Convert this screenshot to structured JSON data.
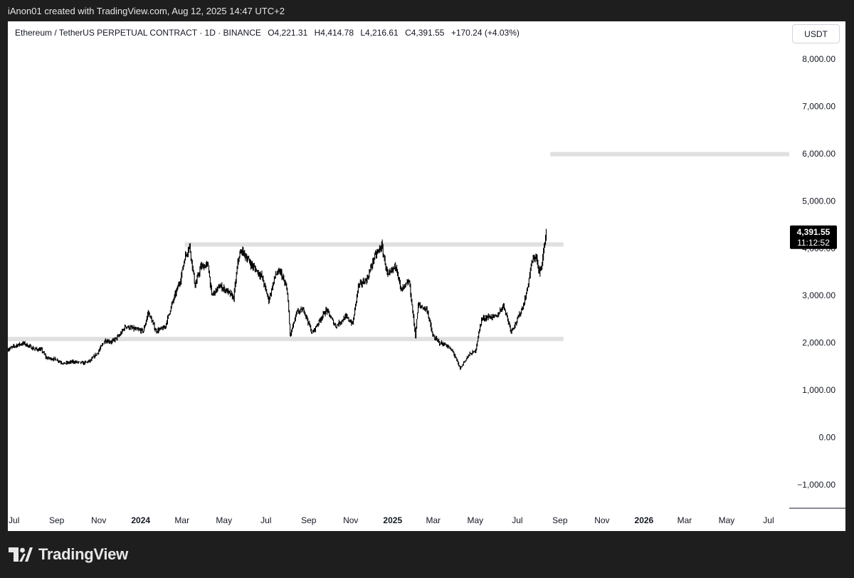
{
  "caption": "iAnon01 created with TradingView.com, Aug 12, 2025 14:47 UTC+2",
  "brand": {
    "name": "TradingView",
    "logo_icon": "tradingview-logo-icon"
  },
  "legend": {
    "symbol": "Ethereum / TetherUS PERPETUAL CONTRACT · 1D · BINANCE",
    "open": "O4,221.31",
    "high": "H4,414.78",
    "low": "L4,216.61",
    "close": "C4,391.55",
    "change": "+170.24 (+4.03%)"
  },
  "currency": "USDT",
  "colors": {
    "candle": "#000000",
    "zone": "#e0e0e0",
    "price_label_bg": "#000000",
    "frame_bg": "#1e1e1e"
  },
  "chart_data": {
    "type": "line",
    "price_label": {
      "value": "4,391.55",
      "countdown": "11:12:52"
    },
    "y_axis": {
      "range": [
        -1500,
        8800
      ],
      "ticks": [
        {
          "value": 8000,
          "label": "8,000.00"
        },
        {
          "value": 7000,
          "label": "7,000.00"
        },
        {
          "value": 6000,
          "label": "6,000.00"
        },
        {
          "value": 5000,
          "label": "5,000.00"
        },
        {
          "value": 4000,
          "label": "4,000.00"
        },
        {
          "value": 3000,
          "label": "3,000.00"
        },
        {
          "value": 2000,
          "label": "2,000.00"
        },
        {
          "value": 1000,
          "label": "1,000.00"
        },
        {
          "value": 0,
          "label": "0.00"
        },
        {
          "value": -1000,
          "label": "−1,000.00"
        }
      ]
    },
    "x_axis": {
      "range": [
        "2023-06-22",
        "2026-07-31"
      ],
      "ticks": [
        {
          "date": "2023-07-01",
          "label": "Jul",
          "bold": false
        },
        {
          "date": "2023-09-01",
          "label": "Sep",
          "bold": false
        },
        {
          "date": "2023-11-01",
          "label": "Nov",
          "bold": false
        },
        {
          "date": "2024-01-01",
          "label": "2024",
          "bold": true
        },
        {
          "date": "2024-03-01",
          "label": "Mar",
          "bold": false
        },
        {
          "date": "2024-05-01",
          "label": "May",
          "bold": false
        },
        {
          "date": "2024-07-01",
          "label": "Jul",
          "bold": false
        },
        {
          "date": "2024-09-01",
          "label": "Sep",
          "bold": false
        },
        {
          "date": "2024-11-01",
          "label": "Nov",
          "bold": false
        },
        {
          "date": "2025-01-01",
          "label": "2025",
          "bold": true
        },
        {
          "date": "2025-03-01",
          "label": "Mar",
          "bold": false
        },
        {
          "date": "2025-05-01",
          "label": "May",
          "bold": false
        },
        {
          "date": "2025-07-01",
          "label": "Jul",
          "bold": false
        },
        {
          "date": "2025-09-01",
          "label": "Sep",
          "bold": false
        },
        {
          "date": "2025-11-01",
          "label": "Nov",
          "bold": false
        },
        {
          "date": "2026-01-01",
          "label": "2026",
          "bold": true
        },
        {
          "date": "2026-03-01",
          "label": "Mar",
          "bold": false
        },
        {
          "date": "2026-05-01",
          "label": "May",
          "bold": false
        },
        {
          "date": "2026-07-01",
          "label": "Jul",
          "bold": false
        }
      ]
    },
    "zones": [
      {
        "value": 4080,
        "from": "2024-03-05",
        "to": "2025-09-06"
      },
      {
        "value": 2080,
        "from": "2023-06-22",
        "to": "2025-09-06"
      },
      {
        "value": 5990,
        "from": "2025-08-18",
        "to": "2026-07-31"
      }
    ],
    "series": [
      {
        "points": [
          [
            "2023-06-22",
            1860
          ],
          [
            "2023-07-05",
            1950
          ],
          [
            "2023-07-15",
            1990
          ],
          [
            "2023-07-30",
            1870
          ],
          [
            "2023-08-10",
            1850
          ],
          [
            "2023-08-17",
            1680
          ],
          [
            "2023-08-31",
            1650
          ],
          [
            "2023-09-11",
            1560
          ],
          [
            "2023-09-25",
            1600
          ],
          [
            "2023-10-10",
            1570
          ],
          [
            "2023-10-20",
            1620
          ],
          [
            "2023-10-31",
            1800
          ],
          [
            "2023-11-10",
            2050
          ],
          [
            "2023-11-20",
            2020
          ],
          [
            "2023-12-01",
            2150
          ],
          [
            "2023-12-10",
            2350
          ],
          [
            "2023-12-25",
            2280
          ],
          [
            "2024-01-05",
            2250
          ],
          [
            "2024-01-12",
            2650
          ],
          [
            "2024-01-23",
            2250
          ],
          [
            "2024-02-05",
            2320
          ],
          [
            "2024-02-15",
            2800
          ],
          [
            "2024-02-28",
            3350
          ],
          [
            "2024-03-05",
            3800
          ],
          [
            "2024-03-12",
            4050
          ],
          [
            "2024-03-20",
            3200
          ],
          [
            "2024-03-28",
            3600
          ],
          [
            "2024-04-08",
            3650
          ],
          [
            "2024-04-13",
            3000
          ],
          [
            "2024-04-25",
            3200
          ],
          [
            "2024-05-05",
            3100
          ],
          [
            "2024-05-15",
            2950
          ],
          [
            "2024-05-22",
            3800
          ],
          [
            "2024-05-27",
            3950
          ],
          [
            "2024-06-10",
            3650
          ],
          [
            "2024-06-25",
            3400
          ],
          [
            "2024-07-05",
            2900
          ],
          [
            "2024-07-15",
            3450
          ],
          [
            "2024-07-22",
            3500
          ],
          [
            "2024-08-01",
            3100
          ],
          [
            "2024-08-05",
            2150
          ],
          [
            "2024-08-15",
            2650
          ],
          [
            "2024-08-25",
            2700
          ],
          [
            "2024-09-06",
            2200
          ],
          [
            "2024-09-20",
            2550
          ],
          [
            "2024-09-27",
            2700
          ],
          [
            "2024-10-10",
            2350
          ],
          [
            "2024-10-25",
            2550
          ],
          [
            "2024-11-04",
            2400
          ],
          [
            "2024-11-12",
            3200
          ],
          [
            "2024-11-25",
            3350
          ],
          [
            "2024-12-05",
            3800
          ],
          [
            "2024-12-16",
            4050
          ],
          [
            "2024-12-25",
            3400
          ],
          [
            "2025-01-06",
            3650
          ],
          [
            "2025-01-13",
            3100
          ],
          [
            "2025-01-25",
            3300
          ],
          [
            "2025-02-03",
            2150
          ],
          [
            "2025-02-07",
            2800
          ],
          [
            "2025-02-20",
            2700
          ],
          [
            "2025-02-28",
            2150
          ],
          [
            "2025-03-10",
            2000
          ],
          [
            "2025-03-20",
            1950
          ],
          [
            "2025-03-30",
            1800
          ],
          [
            "2025-04-09",
            1450
          ],
          [
            "2025-04-15",
            1600
          ],
          [
            "2025-04-22",
            1750
          ],
          [
            "2025-05-01",
            1820
          ],
          [
            "2025-05-10",
            2500
          ],
          [
            "2025-05-20",
            2550
          ],
          [
            "2025-06-01",
            2550
          ],
          [
            "2025-06-11",
            2800
          ],
          [
            "2025-06-22",
            2250
          ],
          [
            "2025-06-30",
            2450
          ],
          [
            "2025-07-10",
            2800
          ],
          [
            "2025-07-15",
            3100
          ],
          [
            "2025-07-22",
            3700
          ],
          [
            "2025-07-28",
            3850
          ],
          [
            "2025-08-02",
            3450
          ],
          [
            "2025-08-07",
            3800
          ],
          [
            "2025-08-11",
            4250
          ],
          [
            "2025-08-12",
            4391.55
          ]
        ]
      }
    ]
  }
}
